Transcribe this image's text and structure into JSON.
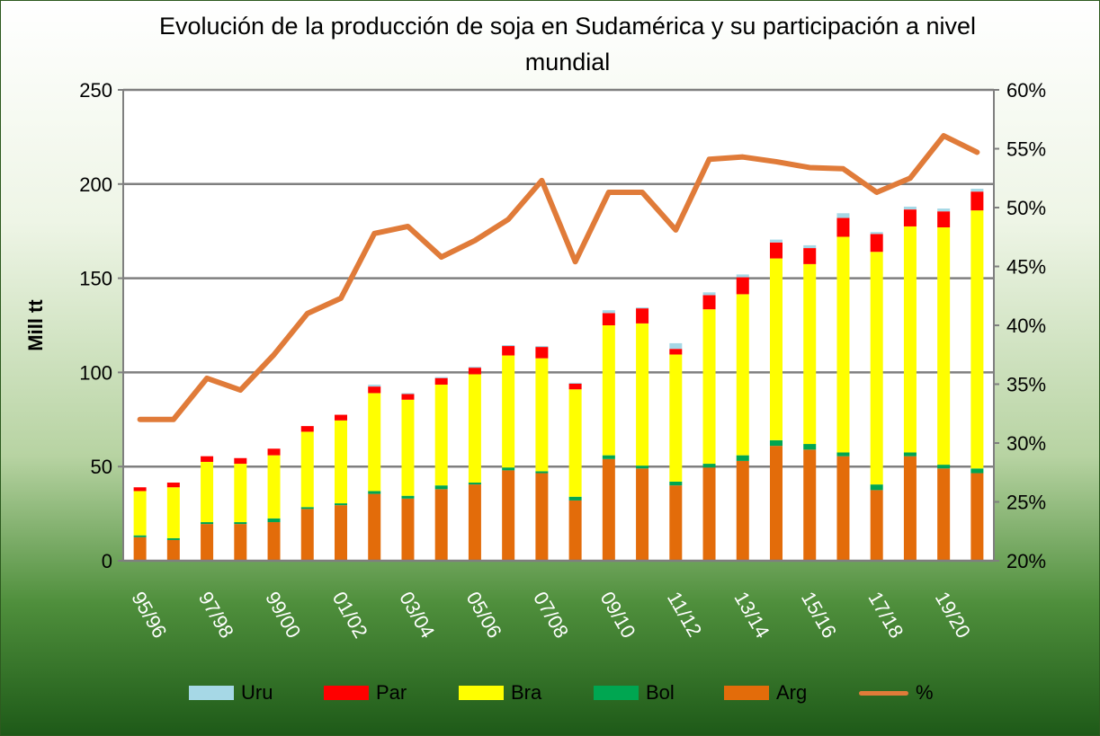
{
  "chart_data": {
    "type": "bar",
    "title": "Evolución de la producción de soja en Sudamérica y su participación a nivel mundial",
    "ylabel": "Mill tt",
    "ylim": [
      0,
      250
    ],
    "y2lim": [
      20,
      60
    ],
    "yticks": [
      "0",
      "50",
      "100",
      "150",
      "200",
      "250"
    ],
    "y2ticks": [
      "20%",
      "25%",
      "30%",
      "35%",
      "40%",
      "45%",
      "50%",
      "55%",
      "60%"
    ],
    "categories": [
      "95/96",
      "96/97",
      "97/98",
      "98/99",
      "99/00",
      "00/01",
      "01/02",
      "02/03",
      "03/04",
      "04/05",
      "05/06",
      "06/07",
      "07/08",
      "08/09",
      "09/10",
      "10/11",
      "11/12",
      "12/13",
      "13/14",
      "14/15",
      "15/16",
      "16/17",
      "17/18",
      "18/19",
      "19/20",
      "20/21"
    ],
    "xtick_labels": [
      "95/96",
      "97/98",
      "99/00",
      "01/02",
      "03/04",
      "05/06",
      "07/08",
      "09/10",
      "11/12",
      "13/14",
      "15/16",
      "17/18",
      "19/20"
    ],
    "series": [
      {
        "name": "Arg",
        "color": "#e36c0a",
        "values": [
          12.5,
          11,
          19.5,
          19.5,
          20.5,
          27.5,
          29.5,
          35.5,
          33,
          38,
          40.5,
          48,
          46.5,
          32,
          54,
          49,
          40,
          49.5,
          53,
          61,
          59,
          55.5,
          37.5,
          55.5,
          49,
          46.5
        ]
      },
      {
        "name": "Bol",
        "color": "#00a651",
        "values": [
          1,
          1,
          1,
          1,
          2,
          1,
          1,
          1.5,
          1.5,
          2,
          1,
          1.5,
          1,
          2,
          2,
          1.5,
          2,
          2,
          3,
          3,
          3,
          2,
          3,
          2,
          2,
          2.5
        ]
      },
      {
        "name": "Bra",
        "color": "#ffff00",
        "values": [
          23.5,
          27,
          32,
          31,
          33.5,
          40,
          44,
          52,
          51,
          53.5,
          57.5,
          59.5,
          60,
          57,
          69,
          75.5,
          67.5,
          82,
          85.5,
          96.5,
          95.5,
          114.5,
          123.5,
          120,
          126,
          137
        ]
      },
      {
        "name": "Par",
        "color": "#ff0000",
        "values": [
          2,
          2.5,
          3,
          3,
          3.5,
          3,
          3,
          3.5,
          3,
          3.5,
          3.5,
          5,
          6,
          3,
          6.5,
          8,
          3,
          7.5,
          9,
          8.5,
          8.5,
          10,
          9.5,
          9,
          8.5,
          10
        ]
      },
      {
        "name": "Uru",
        "color": "#a6d8e6",
        "values": [
          0,
          0,
          0,
          0,
          0,
          0,
          0,
          1,
          0.5,
          0.5,
          0.5,
          0.5,
          0.5,
          0.5,
          1.5,
          0.5,
          3,
          1.5,
          1.5,
          1.5,
          1.5,
          2.5,
          1,
          1.5,
          1.5,
          1.5
        ]
      }
    ],
    "line": {
      "name": "%",
      "color": "#e07b39",
      "values": [
        32,
        32,
        35.5,
        34.5,
        37.5,
        41,
        42.3,
        47.8,
        48.4,
        45.8,
        47.2,
        49,
        52.3,
        45.4,
        51.3,
        51.3,
        48.1,
        54.1,
        54.3,
        53.9,
        53.4,
        53.3,
        51.3,
        52.5,
        56.1,
        54.7
      ]
    },
    "legend": [
      "Uru",
      "Par",
      "Bra",
      "Bol",
      "Arg",
      "%"
    ],
    "legend_position": "bottom",
    "grid": true
  }
}
